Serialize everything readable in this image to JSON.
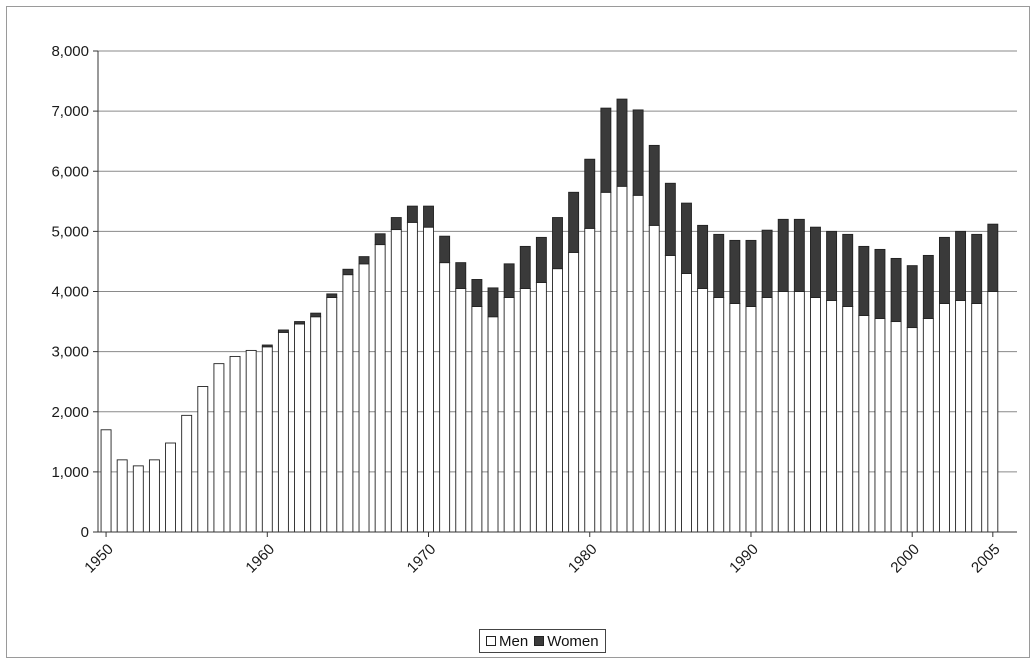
{
  "chart_data": {
    "type": "bar",
    "stacked": true,
    "title": "",
    "xlabel": "",
    "ylabel": "",
    "ylim": [
      0,
      8000
    ],
    "yticks": [
      "0",
      "1,000",
      "2,000",
      "3,000",
      "4,000",
      "5,000",
      "6,000",
      "7,000",
      "8,000"
    ],
    "yticks_values": [
      0,
      1000,
      2000,
      3000,
      4000,
      5000,
      6000,
      7000,
      8000
    ],
    "xtick_labels": [
      "1950",
      "1960",
      "1970",
      "1980",
      "1990",
      "2000",
      "2005"
    ],
    "xtick_years": [
      1950,
      1960,
      1970,
      1980,
      1990,
      2000,
      2005
    ],
    "grid": "horizontal",
    "legend_position": "bottom",
    "categories": [
      1950,
      1951,
      1952,
      1953,
      1954,
      1955,
      1956,
      1957,
      1958,
      1959,
      1960,
      1961,
      1962,
      1963,
      1964,
      1965,
      1966,
      1967,
      1968,
      1969,
      1970,
      1971,
      1972,
      1973,
      1974,
      1975,
      1976,
      1977,
      1978,
      1979,
      1980,
      1981,
      1982,
      1983,
      1984,
      1985,
      1986,
      1987,
      1988,
      1989,
      1990,
      1991,
      1992,
      1993,
      1994,
      1995,
      1996,
      1997,
      1998,
      1999,
      2000,
      2001,
      2002,
      2003,
      2004,
      2005,
      2006
    ],
    "series": [
      {
        "name": "Men",
        "color": "#ffffff",
        "values": [
          1700,
          1200,
          1100,
          1200,
          1480,
          1940,
          2420,
          2800,
          2920,
          3020,
          3080,
          3320,
          3460,
          3580,
          3900,
          4280,
          4460,
          4780,
          5030,
          5150,
          5070,
          4480,
          4050,
          3750,
          3580,
          3900,
          4050,
          4150,
          4380,
          4650,
          5050,
          5650,
          5750,
          5600,
          5100,
          4600,
          4300,
          4050,
          3900,
          3800,
          3750,
          3900,
          4000,
          4000,
          3900,
          3850,
          3750,
          3600,
          3550,
          3500,
          3400,
          3550,
          3800,
          3850,
          3800,
          4000,
          0
        ]
      },
      {
        "name": "Women",
        "color": "#3a3a3a",
        "values": [
          0,
          0,
          0,
          0,
          0,
          0,
          0,
          0,
          0,
          0,
          30,
          40,
          40,
          60,
          60,
          90,
          120,
          180,
          200,
          270,
          350,
          440,
          430,
          450,
          480,
          560,
          700,
          750,
          850,
          1000,
          1150,
          1400,
          1450,
          1420,
          1330,
          1200,
          1170,
          1050,
          1050,
          1050,
          1100,
          1120,
          1200,
          1200,
          1170,
          1150,
          1200,
          1150,
          1150,
          1050,
          1030,
          1050,
          1100,
          1150,
          1150,
          1120,
          0
        ]
      }
    ]
  }
}
